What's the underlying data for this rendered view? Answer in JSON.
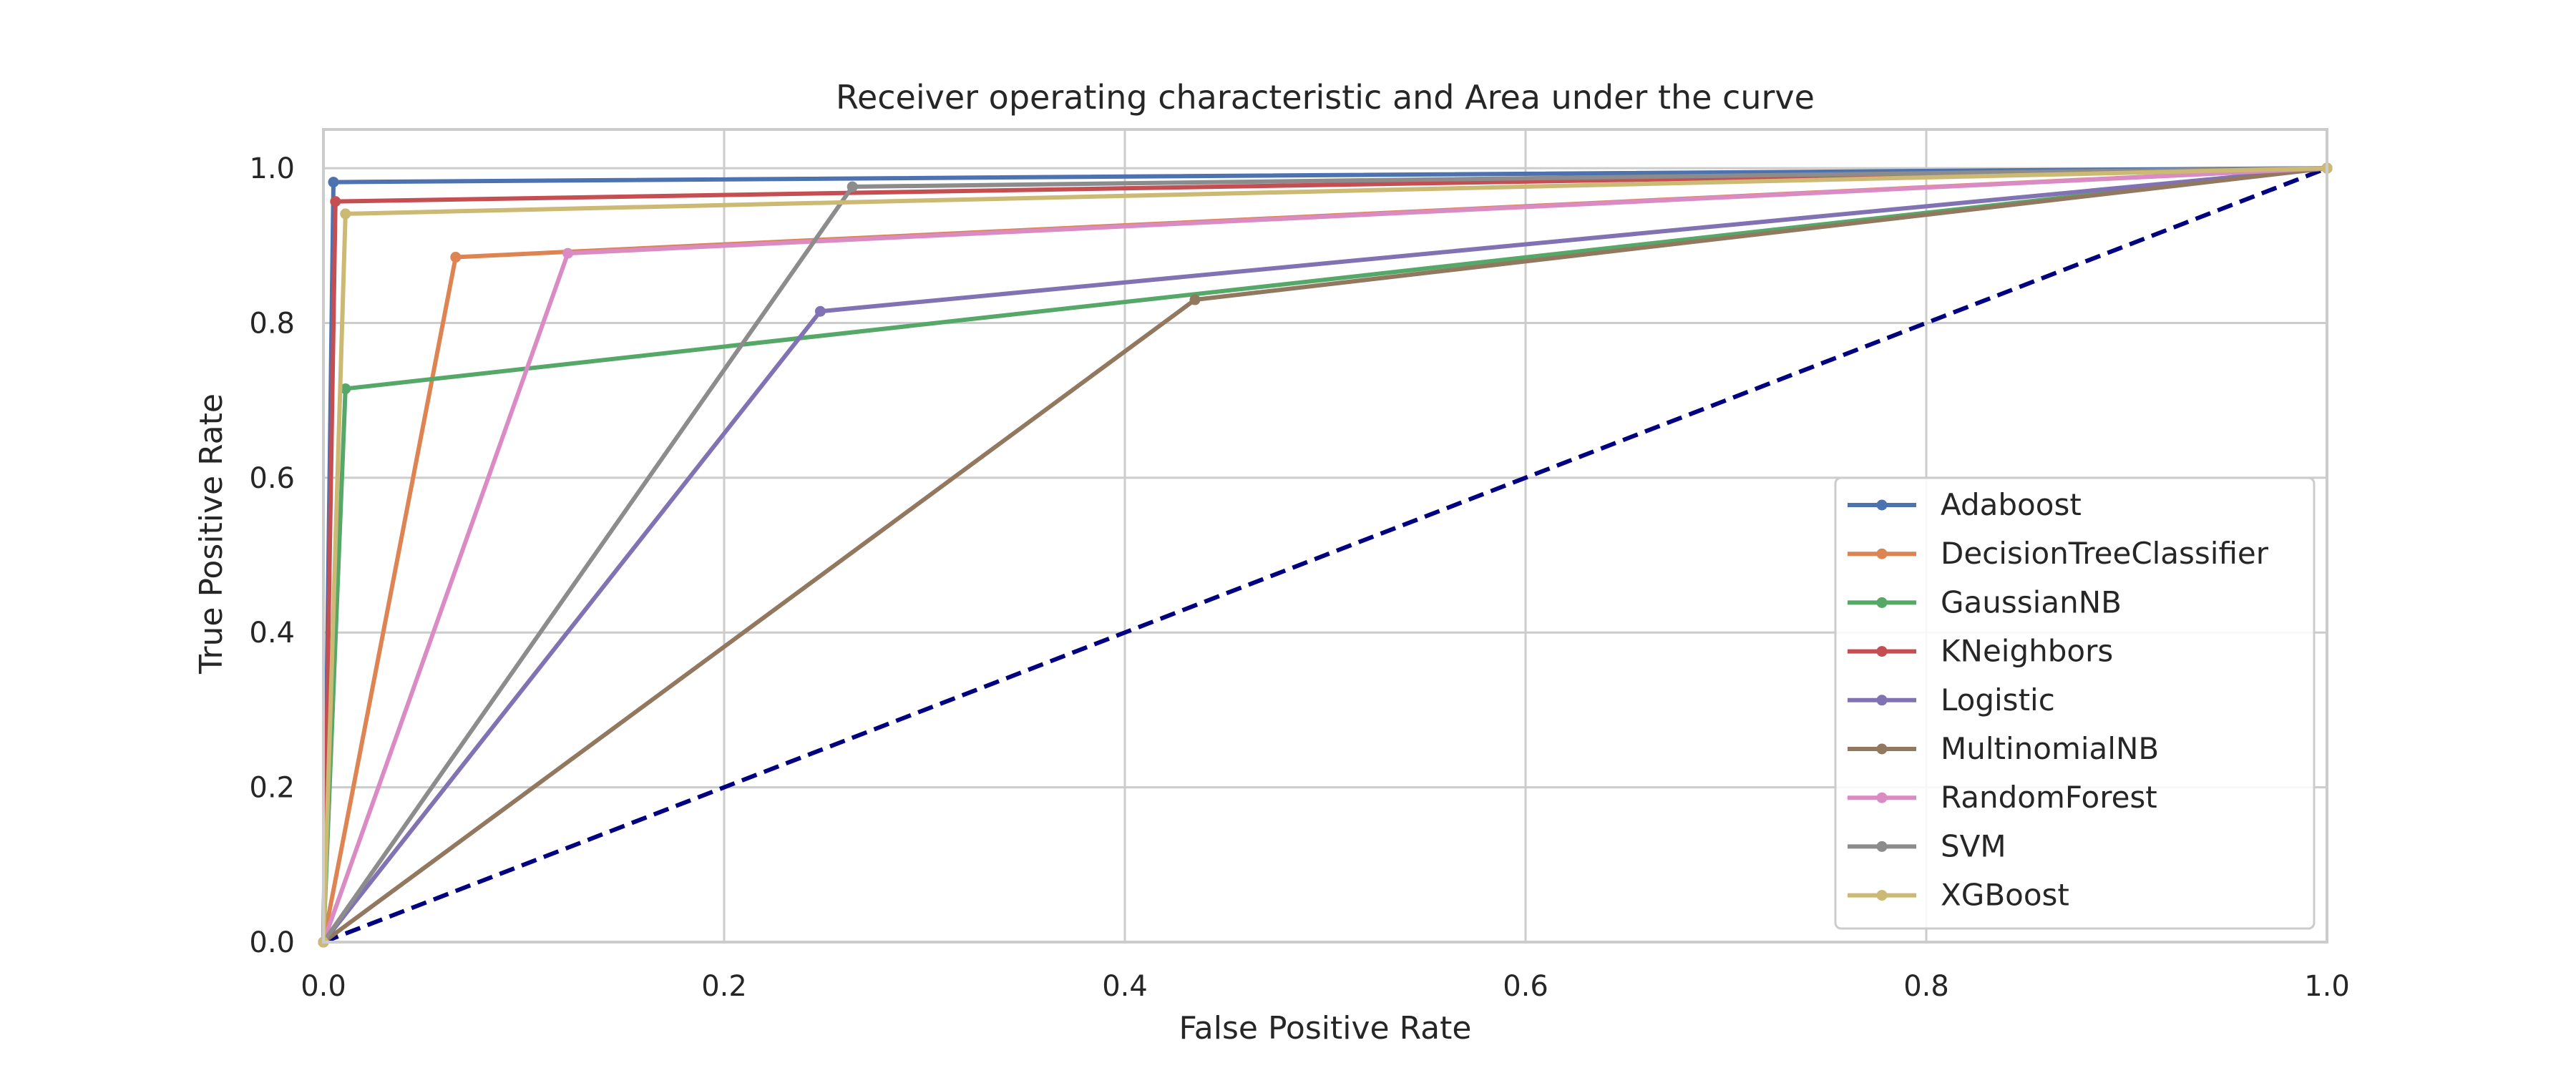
{
  "chart_data": {
    "type": "line",
    "title": "Receiver operating characteristic and Area under the curve",
    "xlabel": "False Positive Rate",
    "ylabel": "True Positive Rate",
    "xlim": [
      0.0,
      1.0
    ],
    "ylim": [
      0.0,
      1.05
    ],
    "xticks": [
      "0.0",
      "0.2",
      "0.4",
      "0.6",
      "0.8",
      "1.0"
    ],
    "yticks": [
      "0.0",
      "0.2",
      "0.4",
      "0.6",
      "0.8",
      "1.0"
    ],
    "grid": true,
    "legend_position": "lower-right",
    "series": [
      {
        "name": "Adaboost",
        "color": "#4c72b0",
        "x": [
          0.0,
          0.005,
          1.0
        ],
        "y": [
          0.0,
          0.982,
          1.0
        ]
      },
      {
        "name": "DecisionTreeClassifier",
        "color": "#dd8452",
        "x": [
          0.0,
          0.066,
          1.0
        ],
        "y": [
          0.0,
          0.885,
          1.0
        ]
      },
      {
        "name": "GaussianNB",
        "color": "#55a868",
        "x": [
          0.0,
          0.011,
          1.0
        ],
        "y": [
          0.0,
          0.715,
          1.0
        ]
      },
      {
        "name": "KNeighbors",
        "color": "#c44e52",
        "x": [
          0.0,
          0.006,
          1.0
        ],
        "y": [
          0.0,
          0.957,
          1.0
        ]
      },
      {
        "name": "Logistic",
        "color": "#8172b3",
        "x": [
          0.0,
          0.248,
          1.0
        ],
        "y": [
          0.0,
          0.815,
          1.0
        ]
      },
      {
        "name": "MultinomialNB",
        "color": "#937860",
        "x": [
          0.0,
          0.435,
          1.0
        ],
        "y": [
          0.0,
          0.83,
          1.0
        ]
      },
      {
        "name": "RandomForest",
        "color": "#da8bc3",
        "x": [
          0.0,
          0.122,
          1.0
        ],
        "y": [
          0.0,
          0.89,
          1.0
        ]
      },
      {
        "name": "SVM",
        "color": "#8c8c8c",
        "x": [
          0.0,
          0.264,
          1.0
        ],
        "y": [
          0.0,
          0.976,
          1.0
        ]
      },
      {
        "name": "XGBoost",
        "color": "#ccb974",
        "x": [
          0.0,
          0.011,
          1.0
        ],
        "y": [
          0.0,
          0.941,
          1.0
        ]
      }
    ],
    "reference_line": {
      "color": "#000080",
      "style": "dashed",
      "x": [
        0.0,
        1.0
      ],
      "y": [
        0.0,
        1.0
      ]
    }
  }
}
